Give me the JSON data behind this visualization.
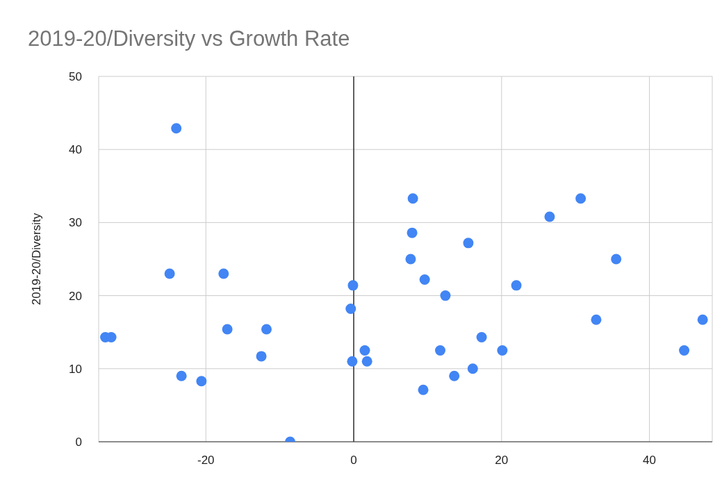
{
  "chart_data": {
    "type": "scatter",
    "title": "2019-20/Diversity vs Growth Rate",
    "ylabel": "2019-20/Diversity",
    "x": [
      -33.6,
      -32.8,
      -24.0,
      -24.9,
      -23.3,
      -20.6,
      -17.6,
      -17.1,
      -11.8,
      -12.5,
      -8.6,
      -0.4,
      -0.1,
      -0.2,
      1.5,
      1.8,
      8.0,
      7.9,
      7.7,
      9.6,
      12.4,
      9.4,
      11.7,
      13.6,
      15.5,
      16.1,
      17.3,
      20.1,
      22.0,
      26.5,
      30.7,
      32.8,
      35.5,
      44.7,
      47.2
    ],
    "values": [
      14.3,
      14.3,
      42.9,
      23.0,
      9.0,
      8.3,
      23.0,
      15.4,
      15.4,
      11.7,
      0,
      18.2,
      21.4,
      11.0,
      12.5,
      11.0,
      33.3,
      28.6,
      25.0,
      22.2,
      20.0,
      7.1,
      12.5,
      9.0,
      27.2,
      10.0,
      14.3,
      12.5,
      21.4,
      30.8,
      33.3,
      16.7,
      25.0,
      12.5,
      16.7
    ],
    "color": "#4285f4",
    "marker": "circle",
    "xlim": [
      -34.5,
      48.5
    ],
    "xticks": [
      -20,
      0,
      20,
      40
    ],
    "ylim": [
      0,
      50
    ],
    "yticks": [
      0,
      10,
      20,
      30,
      40,
      50
    ],
    "grid": true,
    "ref_lines": [
      {
        "axis": "x",
        "value": 0,
        "color": "#333333"
      }
    ]
  }
}
